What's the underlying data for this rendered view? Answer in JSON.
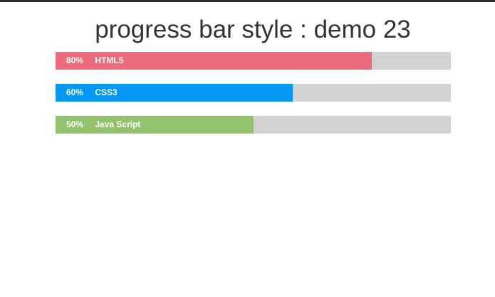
{
  "page": {
    "title": "progress bar style : demo 23"
  },
  "progress_bars": [
    {
      "percent_label": "80%",
      "label": "HTML5",
      "value": 0.8,
      "color": "#ee6b7e"
    },
    {
      "percent_label": "60%",
      "label": "CSS3",
      "value": 0.6,
      "color": "#0599f7"
    },
    {
      "percent_label": "50%",
      "label": "Java Script",
      "value": 0.5,
      "color": "#92c26b"
    }
  ],
  "colors": {
    "track": "#d3d3d3",
    "text": "#ffffff",
    "title": "#333333"
  }
}
